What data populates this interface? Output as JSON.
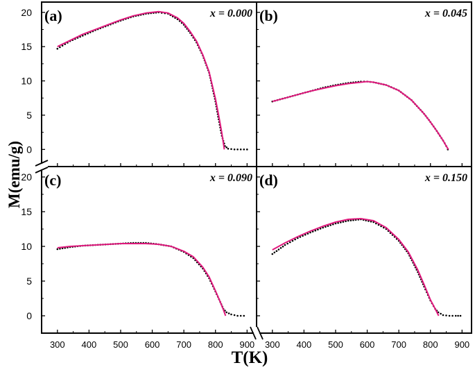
{
  "figure": {
    "ylabel": "M(emu/g)",
    "xlabel": "T(K)"
  },
  "colors": {
    "fit_line": "#e0197d",
    "data_dots": "#000000",
    "frame": "#000000"
  },
  "chart_data": [
    {
      "type": "line",
      "panel_label": "(a)",
      "annotation": "x = 0.000",
      "xlim": [
        250,
        930
      ],
      "ylim": [
        -2.5,
        21.5
      ],
      "xticks": [
        300,
        400,
        500,
        600,
        700,
        800,
        900
      ],
      "yticks": [
        0,
        5,
        10,
        15,
        20
      ],
      "grid": false,
      "series": [
        {
          "style": "dots",
          "x": [
            300,
            340,
            380,
            420,
            460,
            500,
            540,
            580,
            620,
            650,
            680,
            700,
            720,
            740,
            760,
            780,
            800,
            810,
            820,
            830,
            840,
            860,
            880,
            900
          ],
          "y": [
            14.7,
            15.8,
            16.6,
            17.4,
            18.1,
            18.8,
            19.4,
            19.8,
            20.0,
            19.8,
            19.0,
            18.2,
            17.0,
            15.6,
            13.7,
            11.2,
            7.0,
            4.4,
            2.0,
            0.5,
            0.1,
            0.0,
            0.0,
            0.0
          ]
        },
        {
          "style": "line",
          "x": [
            300,
            340,
            380,
            420,
            460,
            500,
            540,
            580,
            620,
            650,
            680,
            700,
            720,
            740,
            760,
            780,
            800,
            810,
            820,
            828
          ],
          "y": [
            15.0,
            15.9,
            16.8,
            17.5,
            18.2,
            18.9,
            19.5,
            19.9,
            20.1,
            19.9,
            19.2,
            18.4,
            17.2,
            15.8,
            13.8,
            11.3,
            7.4,
            5.0,
            2.4,
            0.0
          ]
        }
      ]
    },
    {
      "type": "line",
      "panel_label": "(b)",
      "annotation": "x = 0.045",
      "xlim": [
        250,
        930
      ],
      "ylim": [
        -2.5,
        21.5
      ],
      "xticks": [
        300,
        400,
        500,
        600,
        700,
        800,
        900
      ],
      "yticks": [
        0,
        5,
        10,
        15,
        20
      ],
      "grid": false,
      "series": [
        {
          "style": "dots",
          "x": [
            300,
            340,
            380,
            420,
            460,
            500,
            540,
            580,
            600,
            620,
            660,
            700,
            740,
            780,
            800,
            820,
            840,
            850,
            855
          ],
          "y": [
            7.0,
            7.5,
            8.0,
            8.5,
            9.0,
            9.4,
            9.7,
            9.9,
            9.9,
            9.8,
            9.4,
            8.6,
            7.2,
            5.2,
            4.0,
            2.7,
            1.3,
            0.5,
            0.0
          ]
        },
        {
          "style": "line",
          "x": [
            300,
            340,
            380,
            420,
            460,
            500,
            540,
            580,
            600,
            620,
            660,
            700,
            740,
            780,
            800,
            820,
            840,
            850,
            857
          ],
          "y": [
            7.0,
            7.5,
            8.0,
            8.5,
            8.9,
            9.3,
            9.6,
            9.8,
            9.9,
            9.8,
            9.4,
            8.6,
            7.2,
            5.2,
            4.0,
            2.7,
            1.3,
            0.5,
            0.0
          ]
        }
      ]
    },
    {
      "type": "line",
      "panel_label": "(c)",
      "annotation": "x = 0.090",
      "xlim": [
        250,
        930
      ],
      "ylim": [
        -2.5,
        21.5
      ],
      "xticks": [
        300,
        400,
        500,
        600,
        700,
        800,
        900
      ],
      "yticks": [
        0,
        5,
        10,
        15,
        20
      ],
      "grid": false,
      "series": [
        {
          "style": "dots",
          "x": [
            300,
            340,
            380,
            420,
            460,
            500,
            540,
            580,
            620,
            660,
            700,
            730,
            760,
            780,
            800,
            815,
            825,
            835,
            850,
            870,
            890
          ],
          "y": [
            9.6,
            9.9,
            10.1,
            10.2,
            10.3,
            10.4,
            10.5,
            10.5,
            10.3,
            10.0,
            9.2,
            8.3,
            6.8,
            5.4,
            3.5,
            2.0,
            1.0,
            0.5,
            0.2,
            0.0,
            0.0
          ]
        },
        {
          "style": "line",
          "x": [
            300,
            340,
            380,
            420,
            460,
            500,
            540,
            580,
            620,
            660,
            700,
            730,
            760,
            780,
            800,
            815,
            825,
            832
          ],
          "y": [
            9.8,
            10.0,
            10.1,
            10.2,
            10.3,
            10.4,
            10.4,
            10.4,
            10.3,
            10.0,
            9.3,
            8.5,
            7.0,
            5.6,
            3.6,
            2.0,
            0.9,
            0.0
          ]
        }
      ]
    },
    {
      "type": "line",
      "panel_label": "(d)",
      "annotation": "x = 0.150",
      "xlim": [
        250,
        930
      ],
      "ylim": [
        -2.5,
        21.5
      ],
      "xticks": [
        300,
        400,
        500,
        600,
        700,
        800,
        900
      ],
      "yticks": [
        0,
        5,
        10,
        15,
        20
      ],
      "grid": false,
      "series": [
        {
          "style": "dots",
          "x": [
            300,
            340,
            380,
            420,
            460,
            500,
            540,
            580,
            620,
            660,
            700,
            730,
            760,
            780,
            800,
            815,
            825,
            840,
            860,
            880,
            895
          ],
          "y": [
            8.9,
            10.2,
            11.2,
            12.0,
            12.7,
            13.3,
            13.7,
            13.9,
            13.5,
            12.5,
            10.8,
            9.0,
            6.3,
            4.2,
            2.2,
            1.0,
            0.5,
            0.1,
            0.0,
            0.0,
            0.0
          ]
        },
        {
          "style": "line",
          "x": [
            300,
            340,
            380,
            420,
            460,
            500,
            540,
            580,
            620,
            660,
            700,
            730,
            760,
            780,
            800,
            815,
            826
          ],
          "y": [
            9.5,
            10.5,
            11.4,
            12.2,
            12.9,
            13.5,
            13.9,
            14.0,
            13.7,
            12.7,
            11.0,
            9.2,
            6.6,
            4.5,
            2.3,
            1.0,
            0.0
          ]
        }
      ]
    }
  ]
}
